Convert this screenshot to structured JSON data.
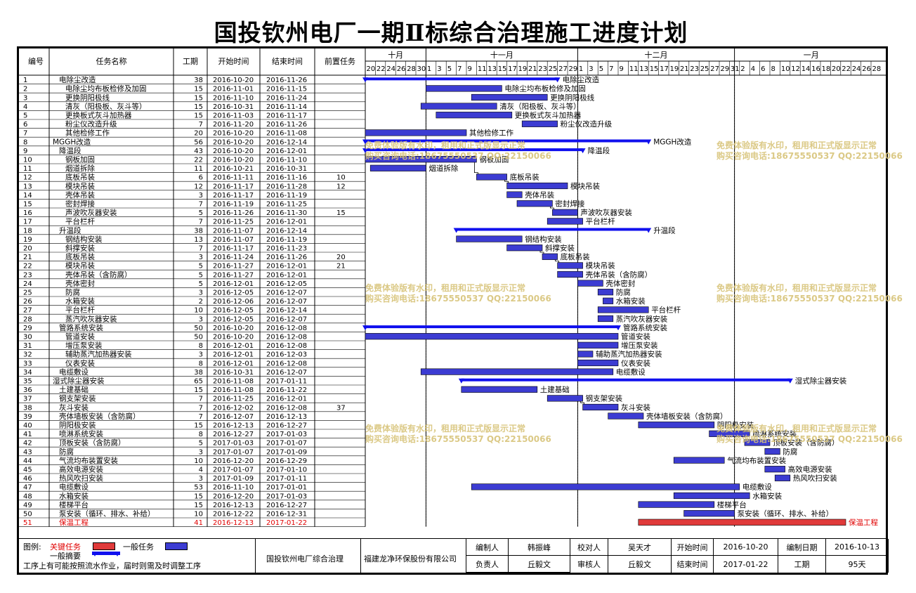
{
  "title": "国投钦州电厂一期Ⅱ标综合治理施工进度计划",
  "colors": {
    "normal_bar": "#3c3cd2",
    "summary_bar": "#1010ee",
    "critical_bar": "#e03a3a",
    "critical_text": "#e00000"
  },
  "chart_data": {
    "type": "gantt",
    "columns": [
      "编号",
      "任务名称",
      "工期",
      "开始时间",
      "结束时间",
      "前置任务"
    ],
    "timeline": {
      "months": [
        "十月",
        "十一月",
        "十二月",
        "一月"
      ],
      "day_ticks": [
        "20",
        "22",
        "24",
        "26",
        "28",
        "30",
        "1",
        "3",
        "5",
        "7",
        "9",
        "11",
        "13",
        "15",
        "17",
        "19",
        "21",
        "23",
        "25",
        "27",
        "29",
        "1",
        "3",
        "5",
        "7",
        "9",
        "11",
        "13",
        "15",
        "17",
        "19",
        "21",
        "23",
        "25",
        "27",
        "29",
        "31",
        "2",
        "4",
        "6",
        "8",
        "10",
        "12",
        "14",
        "16",
        "18",
        "20",
        "22",
        "24",
        "26",
        "28"
      ]
    },
    "tasks": [
      {
        "id": "1",
        "name": "电除尘改造",
        "dur": "38",
        "start": "2016-10-20",
        "end": "2016-11-26",
        "pred": "",
        "indent": 1,
        "type": "summary"
      },
      {
        "id": "2",
        "name": "电除尘均布板检修及加固",
        "dur": "15",
        "start": "2016-11-01",
        "end": "2016-11-15",
        "pred": "",
        "indent": 2,
        "type": "normal"
      },
      {
        "id": "3",
        "name": "更换阴阳极线",
        "dur": "15",
        "start": "2016-11-10",
        "end": "2016-11-24",
        "pred": "",
        "indent": 2,
        "type": "normal"
      },
      {
        "id": "4",
        "name": "清灰（阳极板、灰斗等）",
        "dur": "15",
        "start": "2016-10-31",
        "end": "2016-11-14",
        "pred": "",
        "indent": 2,
        "type": "normal"
      },
      {
        "id": "5",
        "name": "更换板式灰斗加热器",
        "dur": "15",
        "start": "2016-11-03",
        "end": "2016-11-17",
        "pred": "",
        "indent": 2,
        "type": "normal"
      },
      {
        "id": "6",
        "name": "粉尘仪改造升级",
        "dur": "7",
        "start": "2016-11-20",
        "end": "2016-11-26",
        "pred": "",
        "indent": 2,
        "type": "normal"
      },
      {
        "id": "7",
        "name": "其他检修工作",
        "dur": "20",
        "start": "2016-10-20",
        "end": "2016-11-08",
        "pred": "",
        "indent": 2,
        "type": "normal"
      },
      {
        "id": "8",
        "name": "MGGH改造",
        "dur": "56",
        "start": "2016-10-20",
        "end": "2016-12-14",
        "pred": "",
        "indent": 0,
        "type": "summary"
      },
      {
        "id": "9",
        "name": "降温段",
        "dur": "43",
        "start": "2016-10-20",
        "end": "2016-12-01",
        "pred": "",
        "indent": 1,
        "type": "summary"
      },
      {
        "id": "10",
        "name": "钢板加固",
        "dur": "22",
        "start": "2016-10-20",
        "end": "2016-11-10",
        "pred": "",
        "indent": 2,
        "type": "normal"
      },
      {
        "id": "11",
        "name": "烟道拆除",
        "dur": "11",
        "start": "2016-10-21",
        "end": "2016-10-31",
        "pred": "",
        "indent": 2,
        "type": "normal"
      },
      {
        "id": "12",
        "name": "底板吊装",
        "dur": "6",
        "start": "2016-11-11",
        "end": "2016-11-16",
        "pred": "10",
        "indent": 2,
        "type": "normal"
      },
      {
        "id": "13",
        "name": "模块吊装",
        "dur": "12",
        "start": "2016-11-17",
        "end": "2016-11-28",
        "pred": "12",
        "indent": 2,
        "type": "normal"
      },
      {
        "id": "14",
        "name": "壳体吊装",
        "dur": "3",
        "start": "2016-11-17",
        "end": "2016-11-19",
        "pred": "",
        "indent": 2,
        "type": "normal"
      },
      {
        "id": "15",
        "name": "密封焊接",
        "dur": "7",
        "start": "2016-11-19",
        "end": "2016-11-25",
        "pred": "",
        "indent": 2,
        "type": "normal"
      },
      {
        "id": "16",
        "name": "声波吹灰器安装",
        "dur": "5",
        "start": "2016-11-26",
        "end": "2016-11-30",
        "pred": "15",
        "indent": 2,
        "type": "normal"
      },
      {
        "id": "17",
        "name": "平台栏杆",
        "dur": "7",
        "start": "2016-11-25",
        "end": "2016-12-01",
        "pred": "",
        "indent": 2,
        "type": "normal"
      },
      {
        "id": "18",
        "name": "升温段",
        "dur": "38",
        "start": "2016-11-07",
        "end": "2016-12-14",
        "pred": "",
        "indent": 1,
        "type": "summary"
      },
      {
        "id": "19",
        "name": "钢结构安装",
        "dur": "13",
        "start": "2016-11-07",
        "end": "2016-11-19",
        "pred": "",
        "indent": 2,
        "type": "normal"
      },
      {
        "id": "20",
        "name": "斜撑安装",
        "dur": "7",
        "start": "2016-11-17",
        "end": "2016-11-23",
        "pred": "",
        "indent": 2,
        "type": "normal"
      },
      {
        "id": "21",
        "name": "底板吊装",
        "dur": "3",
        "start": "2016-11-24",
        "end": "2016-11-26",
        "pred": "20",
        "indent": 2,
        "type": "normal"
      },
      {
        "id": "22",
        "name": "模块吊装",
        "dur": "5",
        "start": "2016-11-27",
        "end": "2016-12-01",
        "pred": "21",
        "indent": 2,
        "type": "normal"
      },
      {
        "id": "23",
        "name": "壳体吊装（含防腐）",
        "dur": "5",
        "start": "2016-11-27",
        "end": "2016-12-01",
        "pred": "",
        "indent": 2,
        "type": "normal"
      },
      {
        "id": "24",
        "name": "壳体密封",
        "dur": "5",
        "start": "2016-12-01",
        "end": "2016-12-05",
        "pred": "",
        "indent": 2,
        "type": "normal"
      },
      {
        "id": "25",
        "name": "防腐",
        "dur": "3",
        "start": "2016-12-05",
        "end": "2016-12-07",
        "pred": "",
        "indent": 2,
        "type": "normal"
      },
      {
        "id": "26",
        "name": "水箱安装",
        "dur": "2",
        "start": "2016-12-06",
        "end": "2016-12-07",
        "pred": "",
        "indent": 2,
        "type": "normal"
      },
      {
        "id": "27",
        "name": "平台栏杆",
        "dur": "10",
        "start": "2016-12-05",
        "end": "2016-12-14",
        "pred": "",
        "indent": 2,
        "type": "normal"
      },
      {
        "id": "28",
        "name": "蒸汽吹灰器安装",
        "dur": "3",
        "start": "2016-12-05",
        "end": "2016-12-07",
        "pred": "",
        "indent": 2,
        "type": "normal"
      },
      {
        "id": "29",
        "name": "管路系统安装",
        "dur": "50",
        "start": "2016-10-20",
        "end": "2016-12-08",
        "pred": "",
        "indent": 1,
        "type": "summary"
      },
      {
        "id": "30",
        "name": "管道安装",
        "dur": "50",
        "start": "2016-10-20",
        "end": "2016-12-08",
        "pred": "",
        "indent": 2,
        "type": "normal"
      },
      {
        "id": "31",
        "name": "增压泵安装",
        "dur": "8",
        "start": "2016-12-01",
        "end": "2016-12-08",
        "pred": "",
        "indent": 2,
        "type": "normal"
      },
      {
        "id": "32",
        "name": "辅助蒸汽加热器安装",
        "dur": "3",
        "start": "2016-12-01",
        "end": "2016-12-03",
        "pred": "",
        "indent": 2,
        "type": "normal"
      },
      {
        "id": "33",
        "name": "仪表安装",
        "dur": "8",
        "start": "2016-12-01",
        "end": "2016-12-08",
        "pred": "",
        "indent": 2,
        "type": "normal"
      },
      {
        "id": "34",
        "name": "电缆敷设",
        "dur": "38",
        "start": "2016-10-31",
        "end": "2016-12-07",
        "pred": "",
        "indent": 1,
        "type": "normal"
      },
      {
        "id": "35",
        "name": "湿式除尘器安装",
        "dur": "65",
        "start": "2016-11-08",
        "end": "2017-01-11",
        "pred": "",
        "indent": 0,
        "type": "summary"
      },
      {
        "id": "36",
        "name": "土建基础",
        "dur": "15",
        "start": "2016-11-08",
        "end": "2016-11-22",
        "pred": "",
        "indent": 1,
        "type": "normal"
      },
      {
        "id": "37",
        "name": "钢支架安装",
        "dur": "7",
        "start": "2016-11-25",
        "end": "2016-12-01",
        "pred": "",
        "indent": 1,
        "type": "normal"
      },
      {
        "id": "38",
        "name": "灰斗安装",
        "dur": "7",
        "start": "2016-12-02",
        "end": "2016-12-08",
        "pred": "37",
        "indent": 1,
        "type": "normal"
      },
      {
        "id": "39",
        "name": "壳体墙板安装（含防腐）",
        "dur": "7",
        "start": "2016-12-07",
        "end": "2016-12-13",
        "pred": "",
        "indent": 1,
        "type": "normal"
      },
      {
        "id": "40",
        "name": "阴阳极安装",
        "dur": "15",
        "start": "2016-12-13",
        "end": "2016-12-27",
        "pred": "",
        "indent": 1,
        "type": "normal"
      },
      {
        "id": "41",
        "name": "喷淋系统安装",
        "dur": "8",
        "start": "2016-12-27",
        "end": "2017-01-03",
        "pred": "",
        "indent": 1,
        "type": "normal"
      },
      {
        "id": "42",
        "name": "顶板安装（含防腐）",
        "dur": "5",
        "start": "2017-01-03",
        "end": "2017-01-07",
        "pred": "",
        "indent": 1,
        "type": "normal"
      },
      {
        "id": "43",
        "name": "防腐",
        "dur": "3",
        "start": "2017-01-07",
        "end": "2017-01-09",
        "pred": "",
        "indent": 1,
        "type": "normal"
      },
      {
        "id": "44",
        "name": "气流均布装置安装",
        "dur": "10",
        "start": "2016-12-20",
        "end": "2016-12-29",
        "pred": "",
        "indent": 1,
        "type": "normal"
      },
      {
        "id": "45",
        "name": "高效电源安装",
        "dur": "4",
        "start": "2017-01-07",
        "end": "2017-01-10",
        "pred": "",
        "indent": 1,
        "type": "normal"
      },
      {
        "id": "46",
        "name": "热风吹扫安装",
        "dur": "3",
        "start": "2017-01-09",
        "end": "2017-01-11",
        "pred": "",
        "indent": 1,
        "type": "normal"
      },
      {
        "id": "47",
        "name": "电缆敷设",
        "dur": "53",
        "start": "2016-11-10",
        "end": "2017-01-01",
        "pred": "",
        "indent": 1,
        "type": "normal"
      },
      {
        "id": "48",
        "name": "水箱安装",
        "dur": "15",
        "start": "2016-12-20",
        "end": "2017-01-03",
        "pred": "",
        "indent": 1,
        "type": "normal"
      },
      {
        "id": "49",
        "name": "楼梯平台",
        "dur": "15",
        "start": "2016-12-13",
        "end": "2016-12-27",
        "pred": "",
        "indent": 1,
        "type": "normal"
      },
      {
        "id": "50",
        "name": "泵安装（循环、排水、补给）",
        "dur": "10",
        "start": "2016-12-22",
        "end": "2016-12-31",
        "pred": "",
        "indent": 1,
        "type": "normal"
      },
      {
        "id": "51",
        "name": "保温工程",
        "dur": "41",
        "start": "2016-12-13",
        "end": "2017-01-22",
        "pred": "",
        "indent": 1,
        "type": "critical"
      }
    ]
  },
  "footer": {
    "legend_label": "图例:",
    "critical_label": "关键任务",
    "normal_label": "一般任务",
    "summary_label": "一般摘要",
    "note": "工序上有可能按照流水作业，届时则需及时调整工序",
    "project": "国投钦州电厂综合治理",
    "company": "福建龙净环保股份有限公司",
    "cells": [
      [
        "编制人",
        "韩振峰",
        "校对人",
        "吴天才",
        "开始时间",
        "2016-10-20",
        "编制日期",
        "2016-10-13"
      ],
      [
        "负责人",
        "丘毅文",
        "审核人",
        "丘毅文",
        "结束时间",
        "2017-01-22",
        "工期",
        "95天"
      ]
    ]
  },
  "watermark": {
    "line1": "免费体验版有水印，租用和正式版显示正常",
    "line2": "购买咨询电话:18675550537 QQ:22150066"
  }
}
